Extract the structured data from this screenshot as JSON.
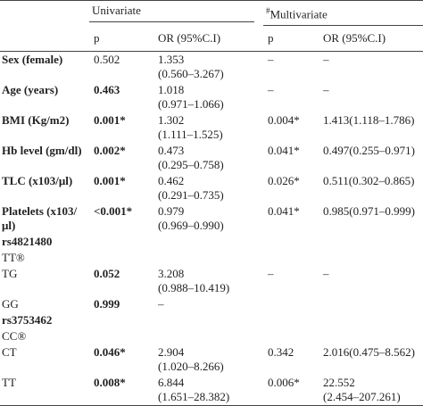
{
  "header": {
    "univariate": "Univariate",
    "multivariate_mark": "#",
    "multivariate": "Multivariate",
    "columns": [
      "p",
      "OR (95%C.I)",
      "p",
      "OR (95%C.I)"
    ]
  },
  "rows": [
    {
      "label": "Sex (female)",
      "label_bold": true,
      "p1": "0.502",
      "p1_bold": false,
      "or1": "1.353",
      "or1_ci": "(0.560–3.267)",
      "p2": "–",
      "or2": "–"
    },
    {
      "label": "Age (years)",
      "label_bold": true,
      "p1": "0.463",
      "p1_bold": true,
      "or1": "1.018",
      "or1_ci": "(0.971–1.066)",
      "p2": "–",
      "or2": "–"
    },
    {
      "label": "BMI (Kg/m2)",
      "label_bold": true,
      "p1": "0.001*",
      "p1_bold": true,
      "or1": "1.302",
      "or1_ci": "(1.111–1.525)",
      "p2": "0.004*",
      "or2": "1.413(1.118–1.786)"
    },
    {
      "label": "Hb level (gm/dl)",
      "label_bold": true,
      "p1": "0.002*",
      "p1_bold": true,
      "or1": "0.473",
      "or1_ci": "(0.295–0.758)",
      "p2": "0.041*",
      "or2": "0.497(0.255–0.971)"
    },
    {
      "label": "TLC (x103/μl)",
      "label_bold": true,
      "p1": "0.001*",
      "p1_bold": true,
      "or1": "0.462",
      "or1_ci": "(0.291–0.735)",
      "p2": "0.026*",
      "or2": "0.511(0.302–0.865)"
    },
    {
      "label": "Platelets (x103/μl)",
      "label_bold": true,
      "p1": "<0.001*",
      "p1_bold": true,
      "or1": "0.979",
      "or1_ci": "(0.969–0.990)",
      "p2": "0.041*",
      "or2": "0.985(0.971–0.999)"
    },
    {
      "label": "rs4821480",
      "label_bold": true
    },
    {
      "label": "TT®",
      "label_bold": false
    },
    {
      "label": "TG",
      "label_bold": false,
      "p1": "0.052",
      "p1_bold": true,
      "or1": "3.208",
      "or1_ci": "(0.988–10.419)",
      "p2": "–",
      "or2": "–"
    },
    {
      "label": "GG",
      "label_bold": false,
      "p1": "0.999",
      "p1_bold": true,
      "or1": "–"
    },
    {
      "label": "rs3753462",
      "label_bold": true
    },
    {
      "label": "CC®",
      "label_bold": false
    },
    {
      "label": "CT",
      "label_bold": false,
      "p1": "0.046*",
      "p1_bold": true,
      "or1": "2.904",
      "or1_ci": "(1.020–8.266)",
      "p2": "0.342",
      "or2": "2.016(0.475–8.562)"
    },
    {
      "label": "TT",
      "label_bold": false,
      "p1": "0.008*",
      "p1_bold": true,
      "or1": "6.844",
      "or1_ci": "(1.651–28.382)",
      "p2": "0.006*",
      "or2": "22.552",
      "or2_ci": "(2.454–207.261)"
    }
  ]
}
